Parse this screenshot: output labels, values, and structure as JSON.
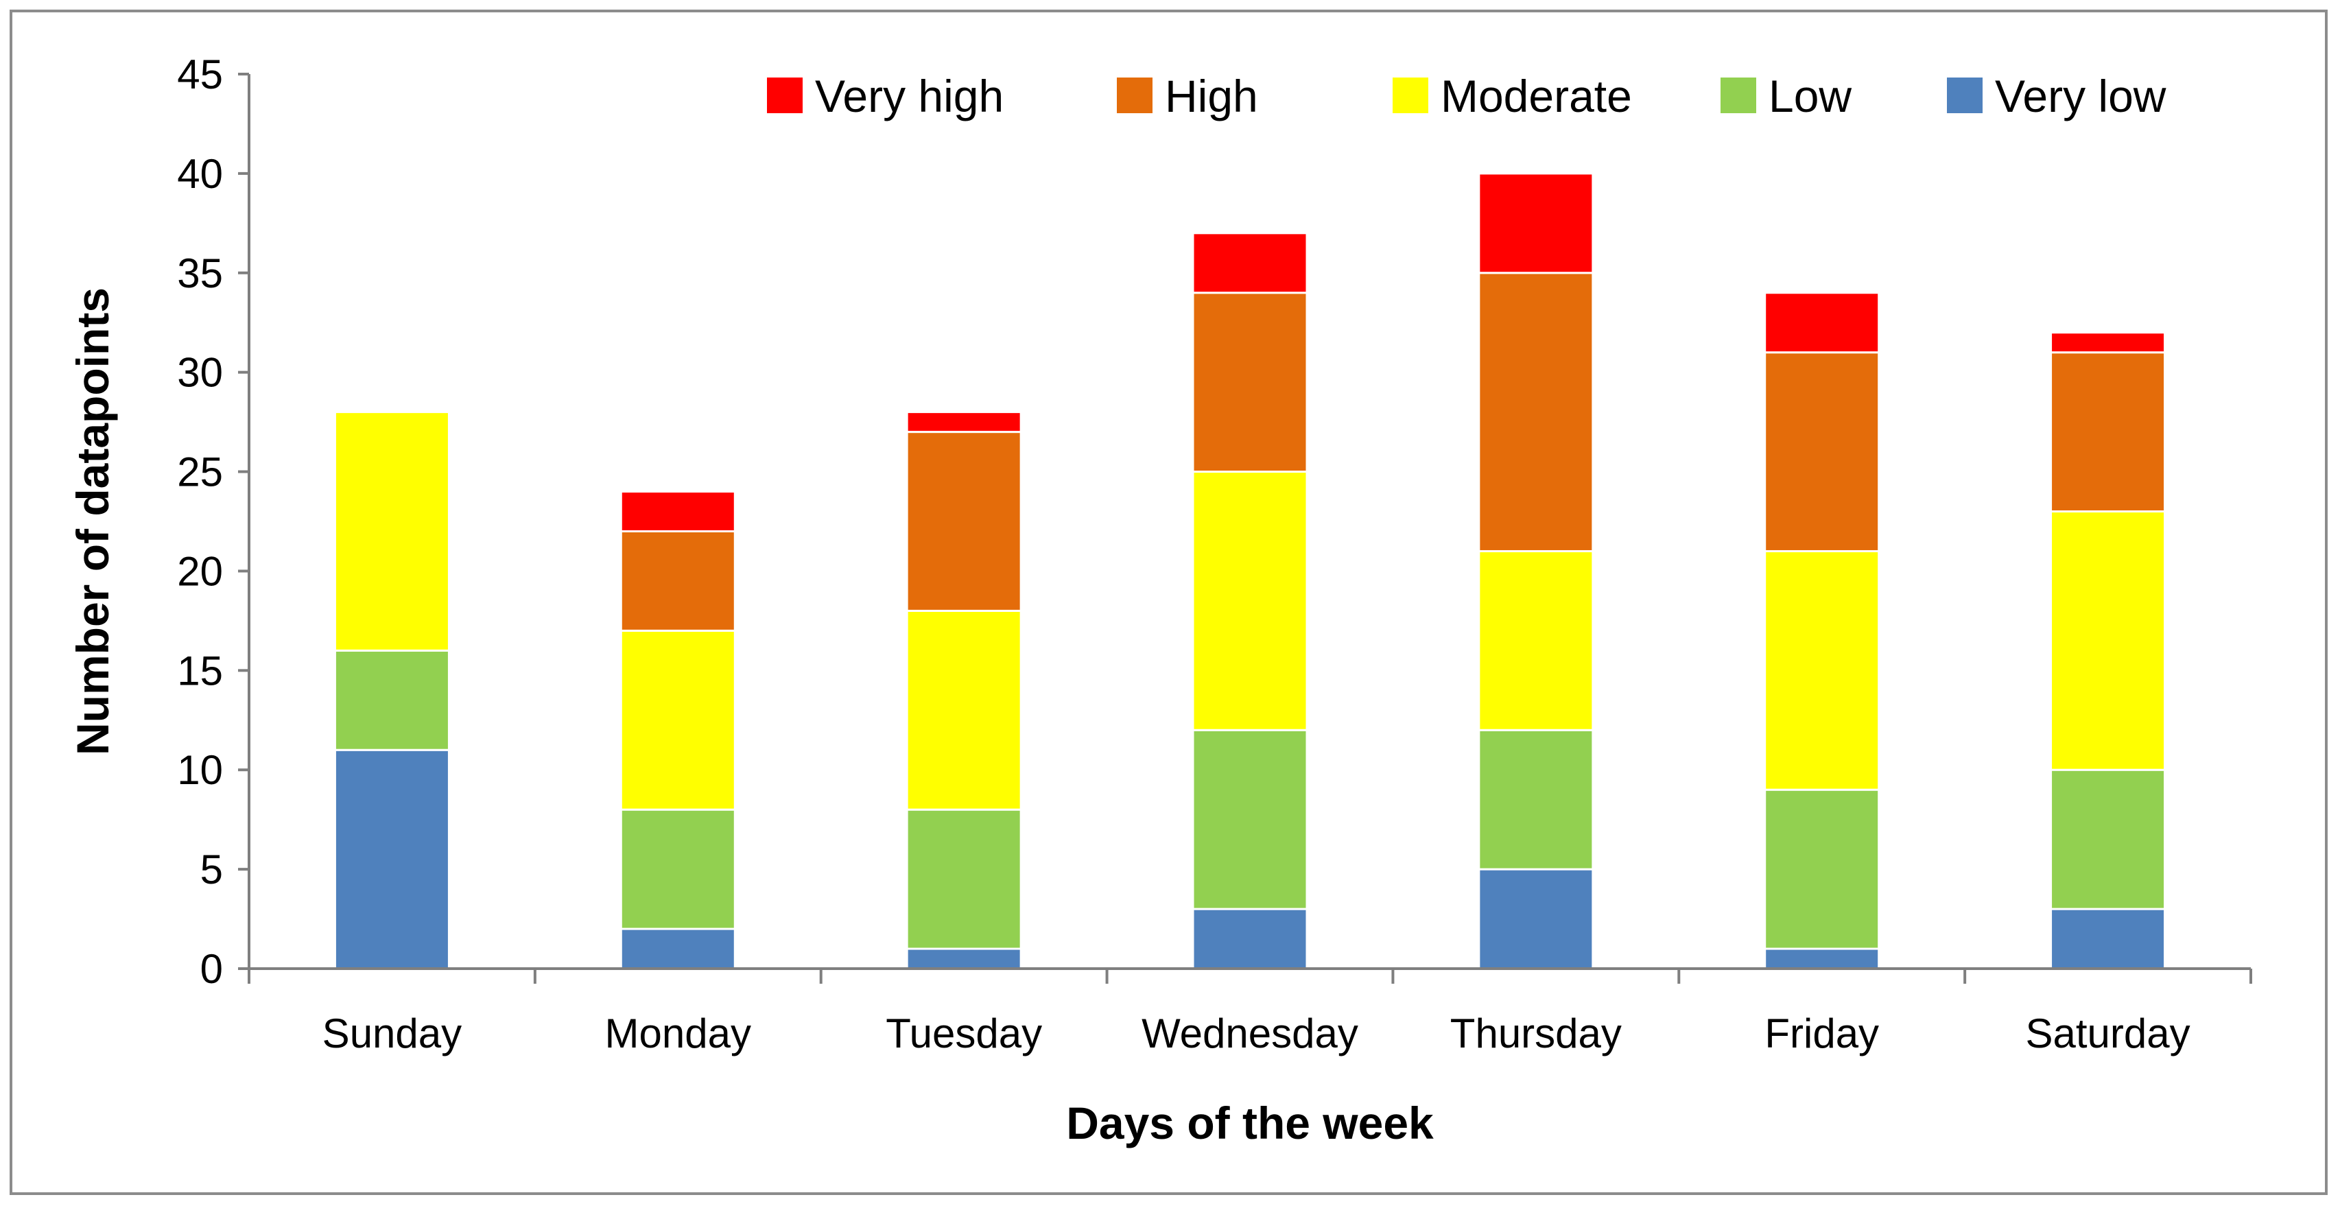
{
  "chart_data": {
    "type": "bar",
    "stacked": true,
    "title": "",
    "xlabel": "Days of the week",
    "ylabel": "Number of datapoints",
    "ylim": [
      0,
      45
    ],
    "yticks": [
      0,
      5,
      10,
      15,
      20,
      25,
      30,
      35,
      40,
      45
    ],
    "categories": [
      "Sunday",
      "Monday",
      "Tuesday",
      "Wednesday",
      "Thursday",
      "Friday",
      "Saturday"
    ],
    "series": [
      {
        "name": "Very low",
        "color": "#4f81bd",
        "values": [
          11,
          2,
          1,
          3,
          5,
          1,
          3
        ]
      },
      {
        "name": "Low",
        "color": "#92d050",
        "values": [
          5,
          6,
          7,
          9,
          7,
          8,
          7
        ]
      },
      {
        "name": "Moderate",
        "color": "#ffff00",
        "values": [
          12,
          9,
          10,
          13,
          9,
          12,
          13
        ]
      },
      {
        "name": "High",
        "color": "#e46c0a",
        "values": [
          0,
          5,
          9,
          9,
          14,
          10,
          8
        ]
      },
      {
        "name": "Very high",
        "color": "#ff0000",
        "values": [
          0,
          2,
          1,
          3,
          5,
          3,
          1
        ]
      }
    ],
    "legend_order": [
      "Very high",
      "High",
      "Moderate",
      "Low",
      "Very low"
    ],
    "legend_position": "top-right",
    "grid": false
  }
}
